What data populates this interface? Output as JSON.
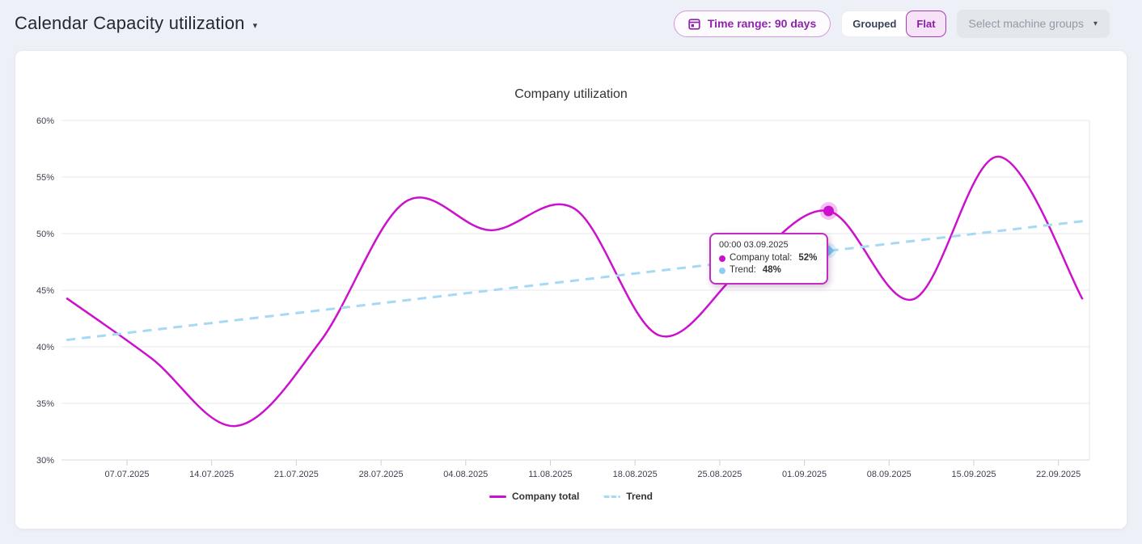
{
  "header": {
    "title": "Calendar Capacity utilization",
    "time_range_label": "Time range: 90 days",
    "toggle": {
      "grouped": "Grouped",
      "flat": "Flat",
      "selected": "Flat"
    },
    "machine_groups_label": "Select machine groups"
  },
  "icons": {
    "title_caret": "▾",
    "select_caret": "▾"
  },
  "colors": {
    "accent_purple": "#9023ab",
    "company_magenta": "#cc11cc",
    "trend_blue": "#a6d9f3",
    "page_background": "#edf1f7",
    "grid_gray": "#e7e7ec"
  },
  "tooltip": {
    "title": "00:00 03.09.2025",
    "rows": [
      {
        "label": "Company total:",
        "value": "52%",
        "color": "#cc11cc"
      },
      {
        "label": "Trend:",
        "value": "48%",
        "color": "#8fcdf2"
      }
    ]
  },
  "chart_data": {
    "type": "line",
    "title": "Company utilization",
    "xlabel": "",
    "ylabel": "",
    "ylim": [
      30,
      60
    ],
    "y_tick_step": 5,
    "y_tick_labels": [
      "30%",
      "35%",
      "40%",
      "45%",
      "50%",
      "55%",
      "60%"
    ],
    "x_tick_labels": [
      "07.07.2025",
      "14.07.2025",
      "21.07.2025",
      "28.07.2025",
      "04.08.2025",
      "11.08.2025",
      "18.08.2025",
      "25.08.2025",
      "01.09.2025",
      "08.09.2025",
      "15.09.2025",
      "22.09.2025"
    ],
    "x_tick_interval_days": 7,
    "grid": "horizontal",
    "legend_position": "bottom",
    "series": [
      {
        "name": "Company total",
        "color": "#cc11cc",
        "style": "solid",
        "dates": [
          "02.07.2025",
          "09.07.2025",
          "16.07.2025",
          "23.07.2025",
          "30.07.2025",
          "06.08.2025",
          "13.08.2025",
          "20.08.2025",
          "27.08.2025",
          "03.09.2025",
          "10.09.2025",
          "17.09.2025",
          "24.09.2025"
        ],
        "days_from_first_tick": [
          -5,
          2,
          9,
          16,
          23,
          30,
          37,
          44,
          51,
          58,
          65,
          72,
          79
        ],
        "values": [
          44.3,
          39,
          33,
          40.5,
          52.8,
          50.3,
          52.2,
          41,
          47,
          52,
          44.2,
          56.8,
          44.2
        ]
      },
      {
        "name": "Trend",
        "color": "#a6d9f3",
        "style": "dashed",
        "days_from_first_tick": [
          -5,
          79
        ],
        "values": [
          40.6,
          51.1
        ]
      }
    ],
    "highlight": {
      "date": "03.09.2025",
      "day": 58,
      "company_value": 52,
      "trend_value": 48.5
    }
  }
}
